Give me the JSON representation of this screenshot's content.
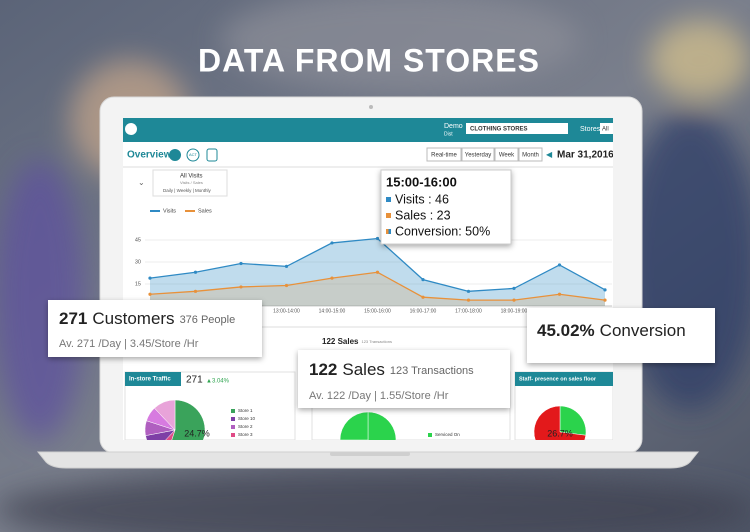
{
  "header": {
    "title": "DATA FROM STORES"
  },
  "dashboard": {
    "topbar": {
      "account": "Demo",
      "account_sub": "Dist",
      "store_group": "CLOTHING STORES",
      "stores_label": "Stores",
      "stores_value": "All"
    },
    "toolbar": {
      "title": "Overview",
      "badge": "ACT",
      "ranges": [
        "Real-time",
        "Yesterday",
        "Week",
        "Month"
      ],
      "date": "Mar 31,2016"
    },
    "metric_selector": {
      "title": "All Visits",
      "subtitle": "Visits / Sales",
      "periods": "Daily | Weekly | Monthly"
    },
    "chart": {
      "type": "line",
      "categories": [
        null,
        null,
        null,
        "13:00-14:00",
        "14:00-15:00",
        "15:00-16:00",
        "16:00-17:00",
        "17:00-18:00",
        "18:00-19:00",
        "19:00-20:00",
        "20:00-21:00"
      ],
      "series": [
        {
          "name": "Visits",
          "color": "#2f8ac4",
          "values": [
            19,
            23,
            29,
            27,
            43,
            46,
            18,
            10,
            12,
            28,
            11
          ]
        },
        {
          "name": "Sales",
          "color": "#e8913a",
          "values": [
            8,
            10,
            13,
            14,
            19,
            23,
            6,
            4,
            4,
            8,
            4
          ]
        }
      ],
      "ylim": [
        0,
        60
      ],
      "yticks": [
        15,
        30,
        45
      ],
      "grid": true
    },
    "tooltip": {
      "title": "15:00-16:00",
      "rows": [
        "Visits : 46",
        "Sales : 23",
        "Conversion: 50%"
      ]
    },
    "customers_card": {
      "value": "271",
      "label": "Customers",
      "secondary": "376 People",
      "detail": "Av. 271 /Day | 3.45/Store /Hr"
    },
    "conversion_card": {
      "value": "45.02%",
      "label": "Conversion"
    },
    "sales_card": {
      "value": "122",
      "label": "Sales",
      "secondary": "123 Transactions",
      "detail": "Av. 122 /Day | 1.55/Store /Hr"
    },
    "sales_section": {
      "title": "122 Sales",
      "subtitle": "123 Transactions"
    },
    "panels": [
      {
        "title": "In-store Traffic",
        "value": "271",
        "change": "▲3.04%",
        "pie_label": "24.7%",
        "legend": [
          "Store 1",
          "Store 10",
          "Store 2",
          "Store 3"
        ]
      },
      {
        "legend": [
          "Serviced On"
        ]
      },
      {
        "title": "Staff- presence on sales floor",
        "pie_label": "26.7%"
      }
    ]
  }
}
